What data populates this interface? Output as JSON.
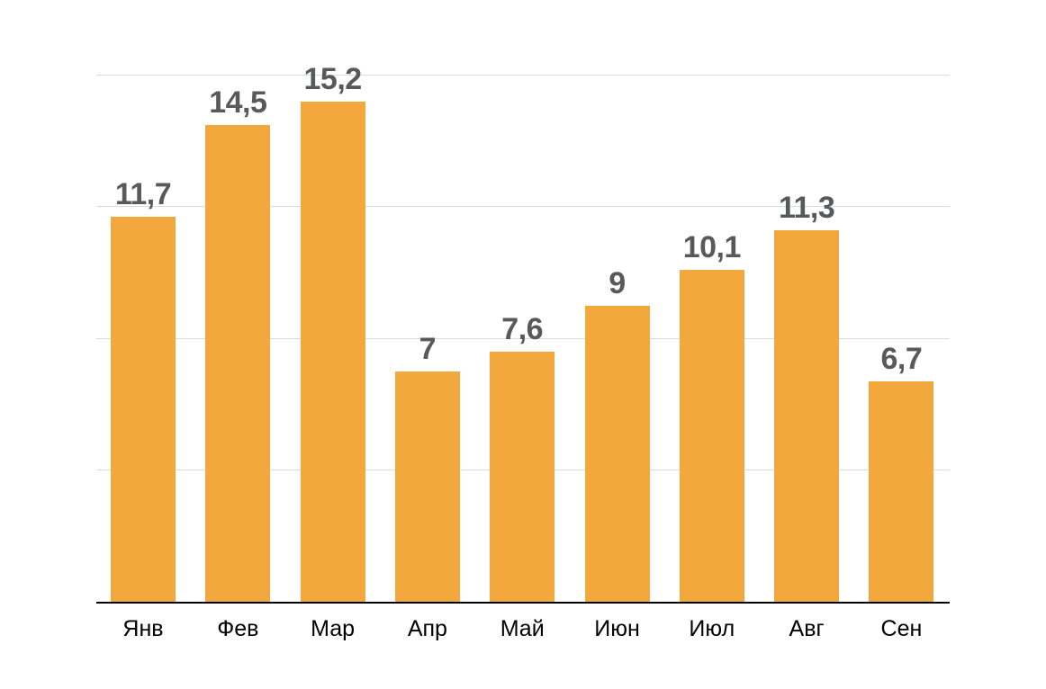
{
  "chart_data": {
    "type": "bar",
    "categories": [
      "Янв",
      "Фев",
      "Мар",
      "Апр",
      "Май",
      "Июн",
      "Июл",
      "Авг",
      "Сен"
    ],
    "values": [
      11.7,
      14.5,
      15.2,
      7,
      7.6,
      9,
      10.1,
      11.3,
      6.7
    ],
    "value_labels": [
      "11,7",
      "14,5",
      "15,2",
      "7",
      "7,6",
      "9",
      "10,1",
      "11,3",
      "6,7"
    ],
    "title": "",
    "xlabel": "",
    "ylabel": "",
    "ylim": [
      0,
      16
    ],
    "grid_values": [
      4,
      8,
      12,
      16
    ],
    "grid_visible": true,
    "y_axis_labels_visible": false,
    "legend_position": "none",
    "colors": {
      "bar": "#F2A83C",
      "value_label": "#58595B",
      "tick_label": "#000000",
      "gridline": "#DCDCDC",
      "axis_line": "#000000",
      "background": "#FFFFFF"
    }
  }
}
